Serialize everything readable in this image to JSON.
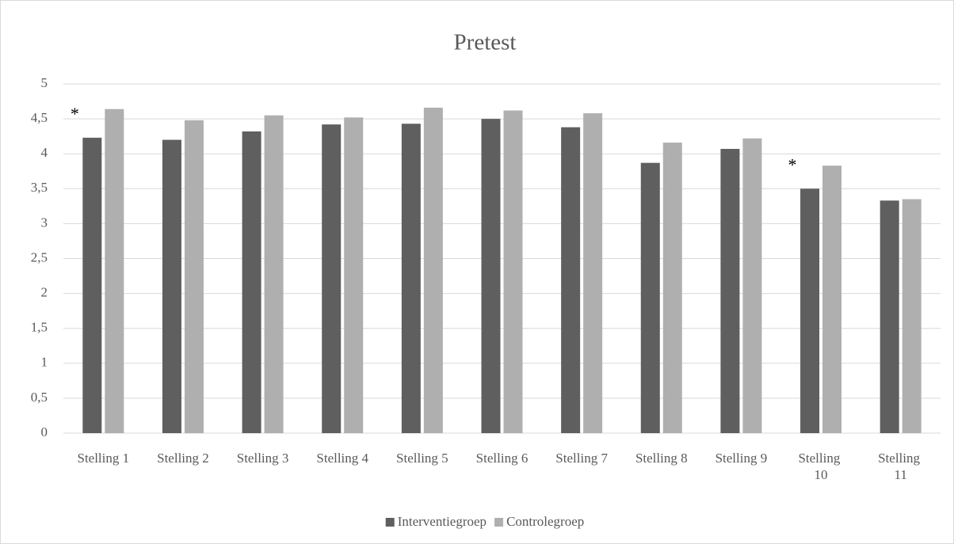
{
  "chart_data": {
    "type": "bar",
    "title": "Pretest",
    "categories": [
      "Stelling 1",
      "Stelling 2",
      "Stelling 3",
      "Stelling 4",
      "Stelling 5",
      "Stelling 6",
      "Stelling 7",
      "Stelling 8",
      "Stelling 9",
      "Stelling 10",
      "Stelling 11"
    ],
    "series": [
      {
        "name": "Interventiegroep",
        "color": "#5f5f5f",
        "values": [
          4.23,
          4.2,
          4.32,
          4.42,
          4.43,
          4.5,
          4.38,
          3.87,
          4.07,
          3.5,
          3.33
        ]
      },
      {
        "name": "Controlegroep",
        "color": "#afafaf",
        "values": [
          4.64,
          4.48,
          4.55,
          4.52,
          4.66,
          4.62,
          4.58,
          4.16,
          4.22,
          3.83,
          3.35
        ]
      }
    ],
    "annotations": [
      {
        "text": "*",
        "category": "Stelling 1"
      },
      {
        "text": "*",
        "category": "Stelling 10"
      }
    ],
    "ylim": [
      0,
      5
    ],
    "yticks": [
      0,
      {
        "value": 0.5,
        "label": "0,5"
      },
      1,
      {
        "value": 1.5,
        "label": "1,5"
      },
      2,
      {
        "value": 2.5,
        "label": "2,5"
      },
      3,
      {
        "value": 3.5,
        "label": "3,5"
      },
      4,
      {
        "value": 4.5,
        "label": "4,5"
      },
      5
    ],
    "grid": true,
    "legend": "bottom"
  }
}
